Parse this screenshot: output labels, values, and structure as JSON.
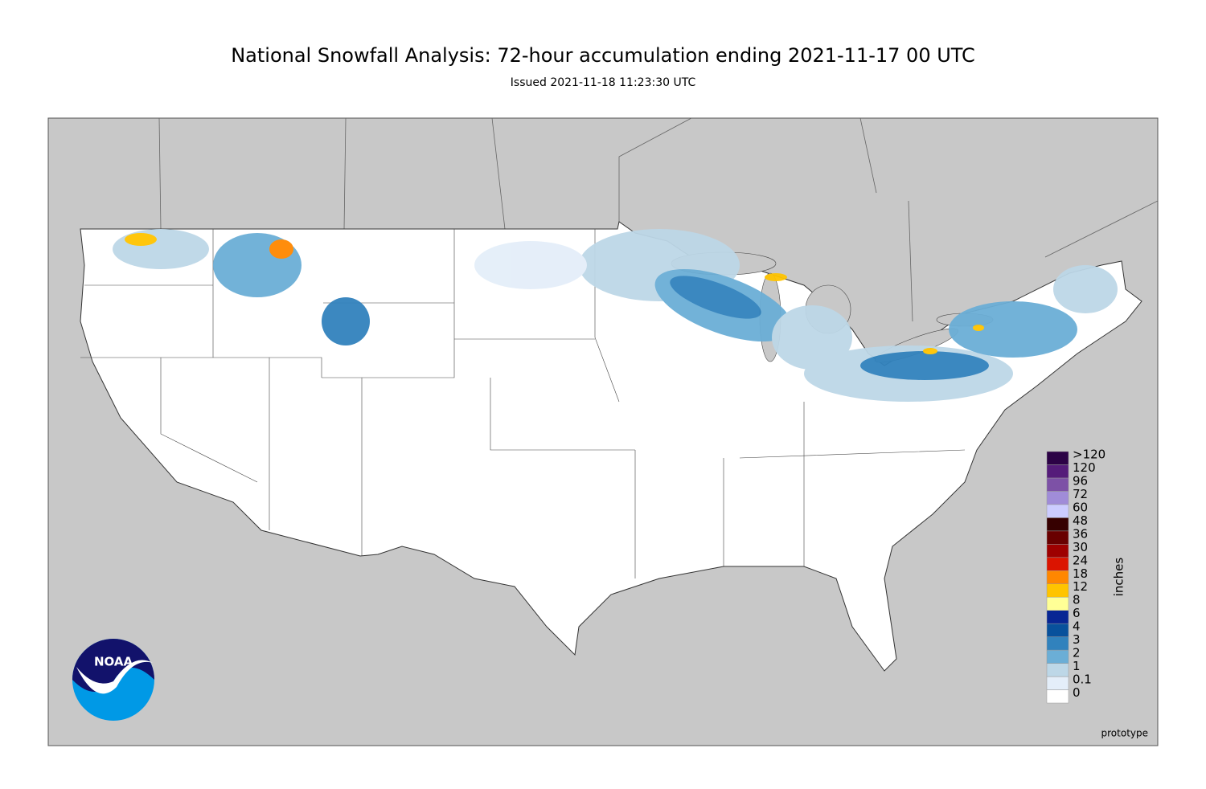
{
  "header": {
    "title": "National Snowfall Analysis: 72-hour accumulation ending 2021-11-17 00 UTC",
    "subtitle": "Issued 2021-11-18 11:23:30 UTC"
  },
  "legend": {
    "unit": "inches",
    "items": [
      {
        "label": "0",
        "color": "#ffffff"
      },
      {
        "label": "0.1",
        "color": "#e4eef9"
      },
      {
        "label": "1",
        "color": "#bdd7e7"
      },
      {
        "label": "2",
        "color": "#6baed6"
      },
      {
        "label": "3",
        "color": "#3182bd"
      },
      {
        "label": "4",
        "color": "#08519c"
      },
      {
        "label": "6",
        "color": "#082694"
      },
      {
        "label": "8",
        "color": "#ffff96"
      },
      {
        "label": "12",
        "color": "#ffc400"
      },
      {
        "label": "18",
        "color": "#ff8700"
      },
      {
        "label": "24",
        "color": "#db1400"
      },
      {
        "label": "30",
        "color": "#9e0000"
      },
      {
        "label": "36",
        "color": "#690000"
      },
      {
        "label": "48",
        "color": "#360000"
      },
      {
        "label": "60",
        "color": "#ccccff"
      },
      {
        "label": "72",
        "color": "#a08cd8"
      },
      {
        "label": "96",
        "color": "#7d51a6"
      },
      {
        "label": "120",
        "color": "#551c7a"
      },
      {
        "label": ">120",
        "color": "#2c0246"
      }
    ]
  },
  "footer": {
    "note": "prototype"
  },
  "logo": {
    "text": "NOAA"
  }
}
